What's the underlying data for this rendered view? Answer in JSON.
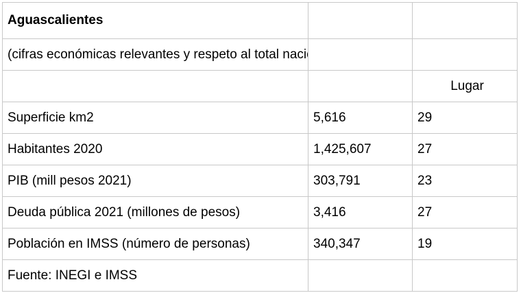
{
  "title": "Aguascalientes",
  "subtitle": "(cifras económicas relevantes y respeto al total nacional)",
  "header": {
    "col1": "",
    "col2": "",
    "col3": "Lugar"
  },
  "rows": [
    {
      "label": "Superficie km2",
      "value": "5,616",
      "rank": "29"
    },
    {
      "label": "Habitantes 2020",
      "value": "1,425,607",
      "rank": "27"
    },
    {
      "label": "PIB (mill pesos 2021)",
      "value": "303,791",
      "rank": "23"
    },
    {
      "label": "Deuda pública 2021 (millones de pesos)",
      "value": "3,416",
      "rank": "27"
    },
    {
      "label": "Población en IMSS (número de personas)",
      "value": "340,347",
      "rank": "19"
    }
  ],
  "source": "Fuente: INEGI e IMSS",
  "colors": {
    "accent_red": "#ff0000",
    "grid": "#c8c8c8"
  }
}
